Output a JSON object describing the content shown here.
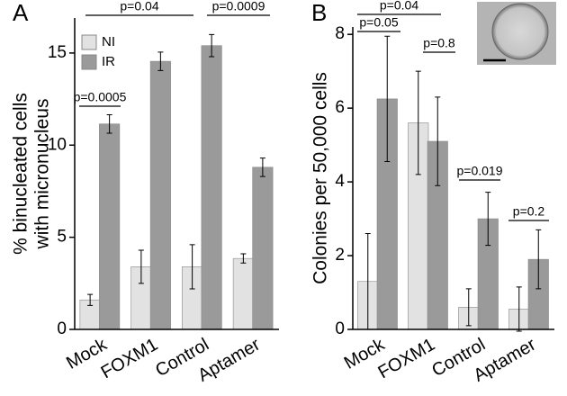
{
  "chart_data": [
    {
      "type": "bar",
      "panel": "A",
      "ylabel": [
        "% binucleated cells",
        "with micronucleus"
      ],
      "categories": [
        "Mock",
        "FOXM1",
        "Control",
        "Aptamer"
      ],
      "series": [
        {
          "name": "NI",
          "color": "#e2e2e2",
          "values": [
            1.6,
            3.4,
            3.4,
            3.85
          ],
          "errors": [
            0.3,
            0.9,
            1.2,
            0.25
          ]
        },
        {
          "name": "IR",
          "color": "#9a9a9a",
          "values": [
            11.15,
            14.55,
            15.4,
            8.8
          ],
          "errors": [
            0.5,
            0.5,
            0.6,
            0.5
          ]
        }
      ],
      "ylim": [
        0,
        16.9
      ],
      "yticks": [
        0,
        5,
        10,
        15
      ],
      "legend": "top-left",
      "annotations": [
        "p=0.0005",
        "p=0.04",
        "p=0.0009"
      ]
    },
    {
      "type": "bar",
      "panel": "B",
      "ylabel": [
        "Colonies per 50,000 cells"
      ],
      "categories": [
        "Mock",
        "FOXM1",
        "Control",
        "Aptamer"
      ],
      "series": [
        {
          "name": "NI",
          "color": "#e2e2e2",
          "values": [
            1.3,
            5.6,
            0.6,
            0.55
          ],
          "errors": [
            1.3,
            1.4,
            0.5,
            0.6
          ]
        },
        {
          "name": "IR",
          "color": "#9a9a9a",
          "values": [
            6.25,
            5.1,
            3.0,
            1.9
          ],
          "errors": [
            1.7,
            1.2,
            0.72,
            0.8
          ]
        }
      ],
      "ylim": [
        0,
        8.2
      ],
      "yticks": [
        0,
        2,
        4,
        6,
        8
      ],
      "annotations": [
        "p=0.05",
        "p=0.04",
        "p=0.8",
        "p=0.019",
        "p=0.2"
      ]
    }
  ]
}
